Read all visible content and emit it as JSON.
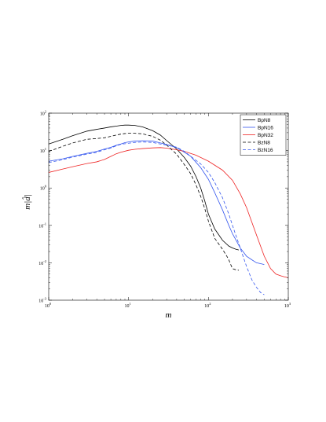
{
  "chart_data": {
    "type": "line",
    "title": "",
    "xlabel": "m",
    "ylabel": "m|d̂|",
    "xscale": "log",
    "yscale": "log",
    "xlim": [
      1,
      1000
    ],
    "ylim": [
      0.001,
      100
    ],
    "grid": false,
    "legend_position": "top-right",
    "x_ticks": [
      {
        "value": 1,
        "base": "10",
        "exp": "0"
      },
      {
        "value": 10,
        "base": "10",
        "exp": "1"
      },
      {
        "value": 100,
        "base": "10",
        "exp": "2"
      },
      {
        "value": 1000,
        "base": "10",
        "exp": "3"
      }
    ],
    "y_ticks": [
      {
        "value": 0.001,
        "base": "10",
        "exp": "-3"
      },
      {
        "value": 0.01,
        "base": "10",
        "exp": "-2"
      },
      {
        "value": 0.1,
        "base": "10",
        "exp": "-1"
      },
      {
        "value": 1,
        "base": "10",
        "exp": "0"
      },
      {
        "value": 10,
        "base": "10",
        "exp": "1"
      },
      {
        "value": 100,
        "base": "10",
        "exp": "2"
      }
    ],
    "series": [
      {
        "name": "BpN8",
        "color": "#000000",
        "dash": "solid",
        "x": [
          1,
          1.5,
          2,
          3,
          4,
          5,
          6,
          7,
          8,
          9,
          10,
          12,
          15,
          20,
          25,
          30,
          40,
          50,
          60,
          70,
          80,
          90,
          100,
          120,
          150,
          180,
          200,
          220,
          240
        ],
        "y": [
          15,
          20,
          25,
          33,
          37,
          40,
          43,
          45,
          47,
          48,
          48,
          47,
          43,
          34,
          26,
          18.5,
          11,
          6.5,
          3.8,
          2,
          1,
          0.45,
          0.2,
          0.08,
          0.04,
          0.028,
          0.025,
          0.023,
          0.022
        ]
      },
      {
        "name": "BpN16",
        "color": "#3355ee",
        "dash": "solid",
        "x": [
          1,
          1.5,
          2,
          3,
          4,
          5,
          6,
          7,
          8,
          9,
          10,
          12,
          15,
          20,
          25,
          30,
          40,
          50,
          60,
          80,
          100,
          120,
          150,
          180,
          200,
          250,
          300,
          350,
          400,
          450,
          500
        ],
        "y": [
          5.2,
          6,
          7,
          8.4,
          9.5,
          11,
          12.2,
          13.8,
          15,
          16.3,
          17,
          18,
          18.3,
          18,
          16,
          14.5,
          12,
          9,
          7,
          3.5,
          1.7,
          0.75,
          0.26,
          0.1,
          0.06,
          0.025,
          0.015,
          0.012,
          0.01,
          0.0095,
          0.009
        ]
      },
      {
        "name": "BpN32",
        "color": "#ee2222",
        "dash": "solid",
        "x": [
          1,
          1.5,
          2,
          3,
          4,
          5,
          6,
          7,
          8,
          10,
          12,
          15,
          20,
          25,
          30,
          40,
          50,
          70,
          100,
          150,
          200,
          250,
          300,
          400,
          500,
          600,
          700,
          800,
          900,
          1000
        ],
        "y": [
          2.6,
          3.2,
          3.7,
          4.5,
          5,
          5.8,
          7,
          8.2,
          9,
          10.2,
          10.8,
          11.3,
          11.8,
          12,
          11.6,
          10.5,
          9.5,
          7.5,
          5.2,
          3,
          1.6,
          0.7,
          0.3,
          0.055,
          0.015,
          0.007,
          0.005,
          0.0045,
          0.0042,
          0.004
        ]
      },
      {
        "name": "BzN8",
        "color": "#000000",
        "dash": "dashed",
        "x": [
          1,
          1.5,
          2,
          3,
          4,
          5,
          6,
          7,
          8,
          9,
          10,
          12,
          15,
          20,
          25,
          30,
          40,
          50,
          60,
          70,
          80,
          90,
          100,
          120,
          150,
          170,
          180,
          190,
          200,
          220,
          240
        ],
        "y": [
          9.5,
          13,
          16,
          20,
          21,
          22,
          24,
          26,
          27.5,
          28.5,
          29,
          29,
          28,
          24,
          19,
          14,
          8,
          4.2,
          2.4,
          1.2,
          0.6,
          0.28,
          0.13,
          0.045,
          0.023,
          0.015,
          0.012,
          0.009,
          0.007,
          0.0065,
          0.0063
        ]
      },
      {
        "name": "BzN16",
        "color": "#3355ee",
        "dash": "dashed",
        "x": [
          1,
          1.5,
          2,
          3,
          4,
          5,
          6,
          7,
          8,
          10,
          12,
          15,
          20,
          25,
          30,
          40,
          50,
          60,
          80,
          100,
          120,
          150,
          180,
          200,
          250,
          300,
          350,
          400,
          450,
          500
        ],
        "y": [
          4.8,
          5.7,
          6.7,
          8,
          9,
          10.5,
          11.7,
          13.4,
          14.7,
          15.7,
          16.5,
          17,
          16.5,
          15,
          14,
          12.3,
          9.5,
          7,
          4.4,
          2.6,
          1.4,
          0.55,
          0.2,
          0.1,
          0.025,
          0.008,
          0.0035,
          0.0022,
          0.0016,
          0.0014
        ]
      }
    ]
  }
}
